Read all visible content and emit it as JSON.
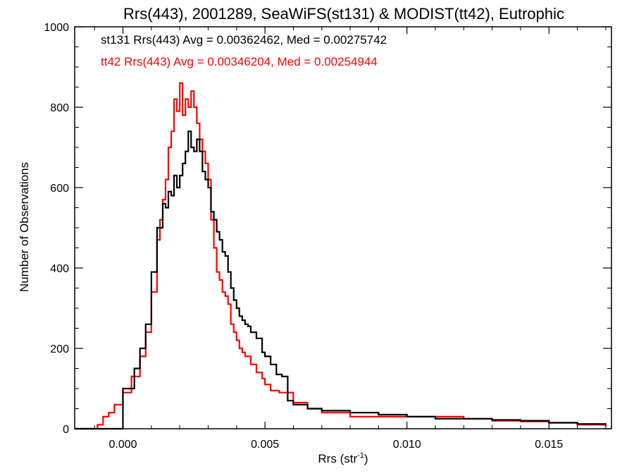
{
  "chart_data": {
    "type": "line",
    "title": "Rrs(443), 2001289, SeaWiFS(st131) & MODIST(tt42), Eutrophic",
    "xlabel_main": "Rrs (str",
    "xlabel_sup": "-1",
    "xlabel_close": ")",
    "ylabel": "Number of Observations",
    "xlim": [
      -0.0017,
      0.0172
    ],
    "ylim": [
      0,
      1000
    ],
    "xticks": [
      0.0,
      0.005,
      0.01,
      0.015
    ],
    "xtick_labels": [
      "0.000",
      "0.005",
      "0.010",
      "0.015"
    ],
    "yticks": [
      0,
      200,
      400,
      600,
      800,
      1000
    ],
    "ytick_labels": [
      "0",
      "200",
      "400",
      "600",
      "800",
      "1000"
    ],
    "grid": false,
    "legend_placement": "top-left",
    "series": [
      {
        "name": "st131",
        "color": "#000000",
        "label": "st131 Rrs(443) Avg = 0.00362462, Med = 0.00275742",
        "points": [
          [
            -0.0017,
            0
          ],
          [
            -0.0001,
            0
          ],
          [
            0.0,
            100
          ],
          [
            0.0004,
            150
          ],
          [
            0.0006,
            200
          ],
          [
            0.0008,
            260
          ],
          [
            0.001,
            390
          ],
          [
            0.0012,
            500
          ],
          [
            0.0014,
            560
          ],
          [
            0.0015,
            550
          ],
          [
            0.0016,
            590
          ],
          [
            0.0017,
            580
          ],
          [
            0.0018,
            630
          ],
          [
            0.0019,
            600
          ],
          [
            0.002,
            630
          ],
          [
            0.0021,
            660
          ],
          [
            0.0022,
            690
          ],
          [
            0.0023,
            740
          ],
          [
            0.0024,
            700
          ],
          [
            0.0025,
            690
          ],
          [
            0.0026,
            720
          ],
          [
            0.0027,
            690
          ],
          [
            0.0028,
            640
          ],
          [
            0.0029,
            620
          ],
          [
            0.003,
            600
          ],
          [
            0.0031,
            540
          ],
          [
            0.0032,
            520
          ],
          [
            0.0033,
            490
          ],
          [
            0.0034,
            470
          ],
          [
            0.0035,
            440
          ],
          [
            0.0036,
            430
          ],
          [
            0.0037,
            390
          ],
          [
            0.0038,
            350
          ],
          [
            0.0039,
            320
          ],
          [
            0.004,
            300
          ],
          [
            0.0041,
            280
          ],
          [
            0.0042,
            270
          ],
          [
            0.0043,
            260
          ],
          [
            0.0044,
            255
          ],
          [
            0.0045,
            240
          ],
          [
            0.0047,
            225
          ],
          [
            0.0049,
            190
          ],
          [
            0.005,
            180
          ],
          [
            0.0052,
            160
          ],
          [
            0.0054,
            135
          ],
          [
            0.0056,
            130
          ],
          [
            0.0058,
            70
          ],
          [
            0.006,
            60
          ],
          [
            0.0065,
            50
          ],
          [
            0.007,
            45
          ],
          [
            0.008,
            40
          ],
          [
            0.009,
            35
          ],
          [
            0.01,
            30
          ],
          [
            0.011,
            25
          ],
          [
            0.012,
            25
          ],
          [
            0.013,
            22
          ],
          [
            0.014,
            20
          ],
          [
            0.015,
            15
          ],
          [
            0.016,
            12
          ],
          [
            0.017,
            8
          ]
        ]
      },
      {
        "name": "tt42",
        "color": "#ff0000",
        "label": "tt42 Rrs(443) Avg = 0.00346204, Med = 0.00254944",
        "points": [
          [
            -0.0017,
            0
          ],
          [
            -0.001,
            0
          ],
          [
            -0.0009,
            10
          ],
          [
            -0.0007,
            30
          ],
          [
            -0.0005,
            40
          ],
          [
            -0.0003,
            60
          ],
          [
            0.0,
            90
          ],
          [
            0.0003,
            130
          ],
          [
            0.0006,
            180
          ],
          [
            0.0008,
            240
          ],
          [
            0.001,
            340
          ],
          [
            0.0012,
            470
          ],
          [
            0.0013,
            520
          ],
          [
            0.0014,
            570
          ],
          [
            0.0015,
            620
          ],
          [
            0.0016,
            700
          ],
          [
            0.0017,
            740
          ],
          [
            0.0018,
            820
          ],
          [
            0.0019,
            790
          ],
          [
            0.002,
            860
          ],
          [
            0.0021,
            780
          ],
          [
            0.0022,
            820
          ],
          [
            0.0023,
            800
          ],
          [
            0.0024,
            840
          ],
          [
            0.0025,
            800
          ],
          [
            0.0026,
            760
          ],
          [
            0.0027,
            720
          ],
          [
            0.0028,
            690
          ],
          [
            0.0029,
            660
          ],
          [
            0.003,
            620
          ],
          [
            0.0031,
            520
          ],
          [
            0.0032,
            450
          ],
          [
            0.0033,
            390
          ],
          [
            0.0034,
            370
          ],
          [
            0.0035,
            340
          ],
          [
            0.0036,
            330
          ],
          [
            0.0037,
            310
          ],
          [
            0.0038,
            260
          ],
          [
            0.0039,
            240
          ],
          [
            0.004,
            220
          ],
          [
            0.0041,
            200
          ],
          [
            0.0042,
            190
          ],
          [
            0.0043,
            180
          ],
          [
            0.0045,
            160
          ],
          [
            0.0047,
            140
          ],
          [
            0.0049,
            125
          ],
          [
            0.005,
            110
          ],
          [
            0.0052,
            95
          ],
          [
            0.0055,
            90
          ],
          [
            0.006,
            65
          ],
          [
            0.0065,
            50
          ],
          [
            0.007,
            40
          ],
          [
            0.008,
            30
          ],
          [
            0.009,
            30
          ],
          [
            0.01,
            30
          ],
          [
            0.011,
            30
          ],
          [
            0.012,
            25
          ],
          [
            0.013,
            20
          ],
          [
            0.014,
            18
          ],
          [
            0.015,
            15
          ],
          [
            0.016,
            10
          ],
          [
            0.017,
            5
          ]
        ]
      }
    ]
  }
}
